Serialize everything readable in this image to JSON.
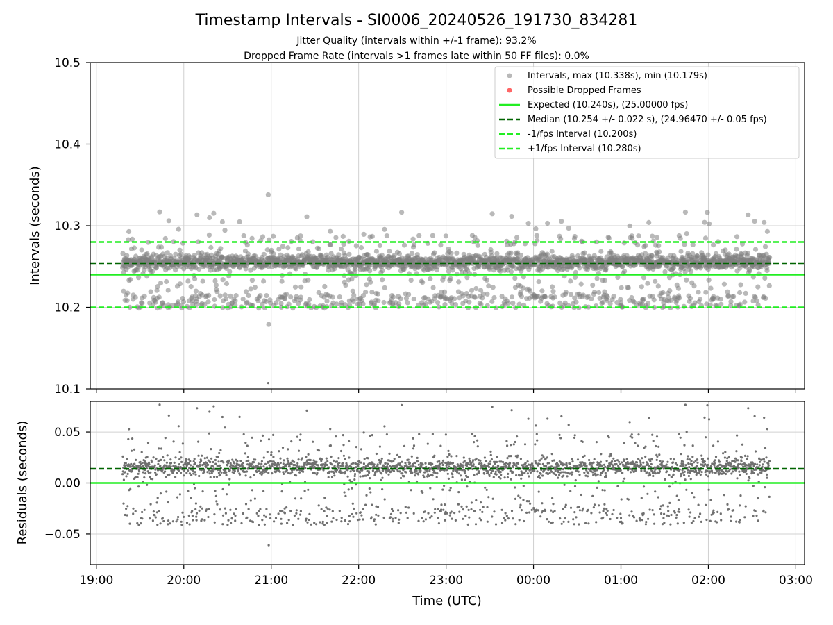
{
  "header": {
    "title": "Timestamp Intervals - SI0006_20240526_191730_834281",
    "subtitle_1": "Jitter Quality (intervals within +/-1 frame): 93.2%",
    "subtitle_2": "Dropped Frame Rate (intervals >1 frames late within 50 FF files): 0.0%"
  },
  "colors": {
    "points": "#808080",
    "dropped": "#ff6666",
    "expected": "#22ee22",
    "median": "#006400",
    "interval": "#22ee22",
    "grid": "#d0d0d0"
  },
  "chart_data": [
    {
      "type": "scatter",
      "ylabel": "Intervals (seconds)",
      "ylim": [
        10.1,
        10.5
      ],
      "yticks": [
        10.1,
        10.2,
        10.3,
        10.4,
        10.5
      ],
      "ytick_labels": [
        "10.1",
        "10.2",
        "10.3",
        "10.4",
        "10.5"
      ],
      "xlim_hours": [
        18.93,
        27.1
      ],
      "grid": true,
      "legend_position": "top-right",
      "series": [
        {
          "name": "Intervals, max (10.338s), min (10.179s)",
          "kind": "scatter",
          "color": "#808080",
          "max": 10.338,
          "min": 10.179,
          "median": 10.254,
          "count": 2600,
          "time_range_hours": [
            19.3,
            26.7
          ]
        },
        {
          "name": "Possible Dropped Frames",
          "kind": "scatter",
          "color": "#ff6666",
          "count": 0
        },
        {
          "name": "Expected (10.240s), (25.00000 fps)",
          "kind": "hline",
          "y": 10.24,
          "style": "solid",
          "color": "#22ee22"
        },
        {
          "name": "Median (10.254 +/- 0.022 s), (24.96470 +/- 0.05 fps)",
          "kind": "hline",
          "y": 10.254,
          "style": "dashed",
          "color": "#006400"
        },
        {
          "name": "-1/fps Interval (10.200s)",
          "kind": "hline",
          "y": 10.2,
          "style": "dashed",
          "color": "#22ee22"
        },
        {
          "name": "+1/fps Interval (10.280s)",
          "kind": "hline",
          "y": 10.28,
          "style": "dashed",
          "color": "#22ee22"
        }
      ]
    },
    {
      "type": "scatter",
      "ylabel": "Residuals (seconds)",
      "xlabel": "Time (UTC)",
      "ylim": [
        -0.08,
        0.08
      ],
      "yticks": [
        -0.05,
        0.0,
        0.05
      ],
      "ytick_labels": [
        "−0.05",
        "0.00",
        "0.05"
      ],
      "xlim_hours": [
        18.93,
        27.1
      ],
      "xticks_hours": [
        19,
        20,
        21,
        22,
        23,
        24,
        25,
        26,
        27
      ],
      "xtick_labels": [
        "19:00",
        "20:00",
        "21:00",
        "22:00",
        "23:00",
        "00:00",
        "01:00",
        "02:00",
        "03:00"
      ],
      "grid": true,
      "series": [
        {
          "kind": "scatter",
          "color": "#808080",
          "max": 0.078,
          "min": -0.061,
          "count": 2600
        },
        {
          "kind": "hline",
          "y": 0.0,
          "style": "solid",
          "color": "#22ee22"
        },
        {
          "kind": "hline",
          "y": 0.014,
          "style": "dashed",
          "color": "#006400"
        }
      ]
    }
  ]
}
